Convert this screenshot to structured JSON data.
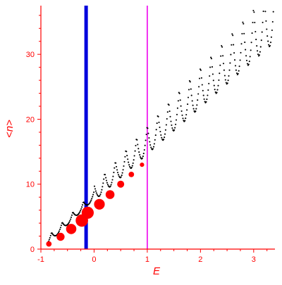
{
  "chart_data": {
    "type": "scatter",
    "xlabel": "E",
    "ylabel": "<n>",
    "xlim": [
      -1.0,
      3.4
    ],
    "ylim": [
      0,
      37.5
    ],
    "x_ticks": [
      -1,
      0,
      1,
      2,
      3
    ],
    "y_ticks": [
      0,
      10,
      20,
      30
    ],
    "x_tick_labels": [
      "-1",
      "0",
      "1",
      "2",
      "3"
    ],
    "y_tick_labels": [
      "0",
      "10",
      "20",
      "30"
    ],
    "grid": false,
    "legend": "none",
    "colors": {
      "axis": "#ff0000",
      "text": "#ff0000",
      "scatter": "#000000",
      "weighted_points": "#ff0000",
      "line_blue": "#0000dd",
      "line_magenta": "#ee00ee"
    },
    "vertical_lines": [
      {
        "x": -0.15,
        "color": "#0000dd",
        "width": "thick"
      },
      {
        "x": 1.0,
        "color": "#ee00ee",
        "width": "thin"
      }
    ],
    "weighted_points": {
      "x": [
        -0.85,
        -0.63,
        -0.43,
        -0.23,
        -0.12,
        0.1,
        0.3,
        0.5,
        0.7,
        0.9
      ],
      "y": [
        0.8,
        1.9,
        3.1,
        4.4,
        5.6,
        6.9,
        8.4,
        10.0,
        11.5,
        13.0
      ],
      "weight": [
        0.12,
        0.35,
        0.65,
        1.0,
        0.95,
        0.7,
        0.45,
        0.25,
        0.12,
        0.06
      ]
    },
    "scatter_series": {
      "description_free": true,
      "x_range": [
        -0.88,
        3.38
      ],
      "peak_period": 0.2,
      "baseline_slope": 9.3,
      "baseline_intercept": 1.2,
      "tooth_height_start": 2.5,
      "tooth_height_growth": 1.25,
      "max_y": 37.0
    }
  }
}
